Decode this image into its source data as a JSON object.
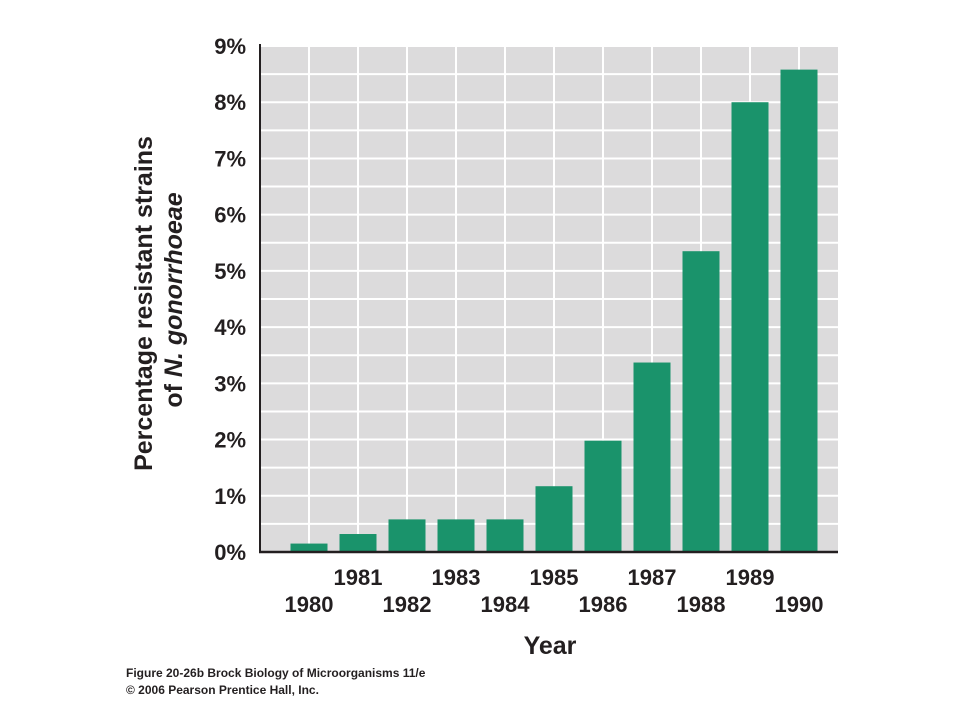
{
  "chart_data": {
    "type": "bar",
    "categories": [
      "1980",
      "1981",
      "1982",
      "1983",
      "1984",
      "1985",
      "1986",
      "1987",
      "1988",
      "1989",
      "1990"
    ],
    "values": [
      0.15,
      0.32,
      0.58,
      0.58,
      0.58,
      1.17,
      1.98,
      3.37,
      5.35,
      8.0,
      8.58
    ],
    "xlabel": "Year",
    "ylabel_line1": "Percentage resistant strains",
    "ylabel_line2_prefix": "of ",
    "ylabel_line2_italic": "N. gonorrhoeae",
    "ylim": [
      0,
      9
    ],
    "yticks": [
      0,
      1,
      2,
      3,
      4,
      5,
      6,
      7,
      8,
      9
    ],
    "ytick_labels": [
      "0%",
      "1%",
      "2%",
      "3%",
      "4%",
      "5%",
      "6%",
      "7%",
      "8%",
      "9%"
    ],
    "grid": true,
    "legend": "none"
  },
  "colors": {
    "bar": "#1a936b",
    "plot_background": "#dcdbdc",
    "grid": "#ffffff",
    "axis": "#231f20",
    "text": "#231f20"
  },
  "footer": {
    "caption": "Figure 20-26b  Brock Biology of Microorganisms 11/e",
    "copyright": "© 2006 Pearson Prentice Hall, Inc."
  }
}
